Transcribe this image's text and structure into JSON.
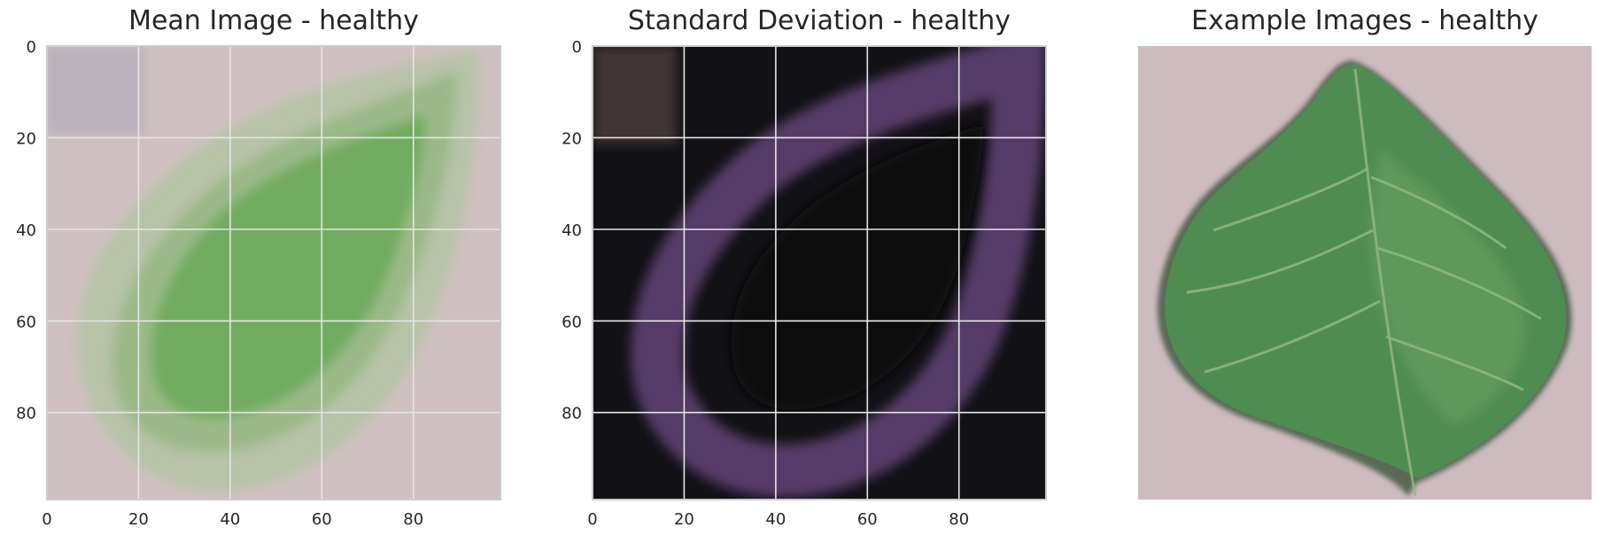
{
  "chart_data": [
    {
      "type": "heatmap",
      "title": "Mean Image - healthy",
      "xlim": [
        0,
        99
      ],
      "ylim": [
        99,
        0
      ],
      "xticks": [
        0,
        20,
        40,
        60,
        80
      ],
      "yticks": [
        0,
        20,
        40,
        60,
        80
      ],
      "grid": true,
      "colors": {
        "background": "#cfc0c1",
        "leaf_outer": "#a9bb98",
        "leaf_mid": "#8cb57c",
        "leaf_inner": "#6aaa5a"
      }
    },
    {
      "type": "heatmap",
      "title": "Standard Deviation - healthy",
      "xlim": [
        0,
        99
      ],
      "ylim": [
        99,
        0
      ],
      "xticks": [
        0,
        20,
        40,
        60,
        80
      ],
      "yticks": [
        0,
        20,
        40,
        60,
        80
      ],
      "grid": true,
      "colors": {
        "background": "#111115",
        "edge": "#5a3f6b",
        "inner": "#2a1f31",
        "center": "#0b0b0b"
      }
    },
    {
      "type": "image",
      "title": "Example Images - healthy",
      "axis": "off",
      "colors": {
        "background": "#cdbbc0",
        "leaf": "#4f8a50",
        "leaf_dark": "#2f6a33",
        "vein": "#88b07a"
      }
    }
  ]
}
